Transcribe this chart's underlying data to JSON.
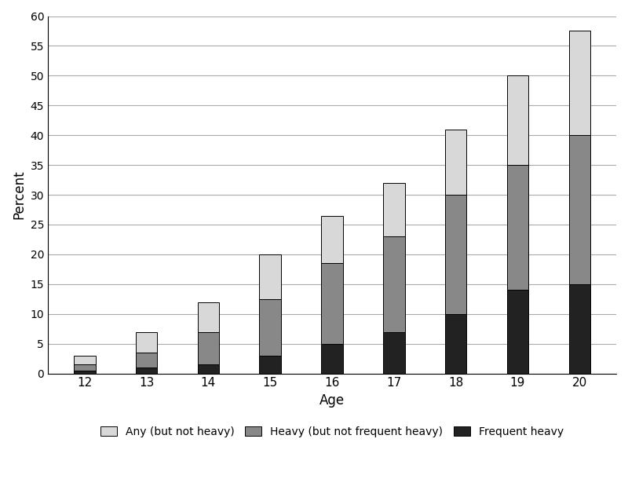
{
  "ages": [
    12,
    13,
    14,
    15,
    16,
    17,
    18,
    19,
    20
  ],
  "any_not_heavy": [
    1.5,
    3.5,
    5.0,
    7.5,
    8.0,
    9.0,
    11.0,
    15.0,
    17.5
  ],
  "heavy_not_freq": [
    1.0,
    2.5,
    5.5,
    9.5,
    13.5,
    16.0,
    20.0,
    21.0,
    25.0
  ],
  "frequent_heavy": [
    0.5,
    1.0,
    1.5,
    3.0,
    5.0,
    7.0,
    10.0,
    14.0,
    15.0
  ],
  "color_any": "#d8d8d8",
  "color_heavy": "#888888",
  "color_freq": "#222222",
  "ylabel": "Percent",
  "xlabel": "Age",
  "ylim": [
    0,
    60
  ],
  "yticks": [
    0,
    5,
    10,
    15,
    20,
    25,
    30,
    35,
    40,
    45,
    50,
    55,
    60
  ],
  "legend_any": "Any (but not heavy)",
  "legend_heavy": "Heavy (but not frequent heavy)",
  "legend_freq": "Frequent heavy",
  "bar_width": 0.35,
  "edgecolor": "#000000"
}
